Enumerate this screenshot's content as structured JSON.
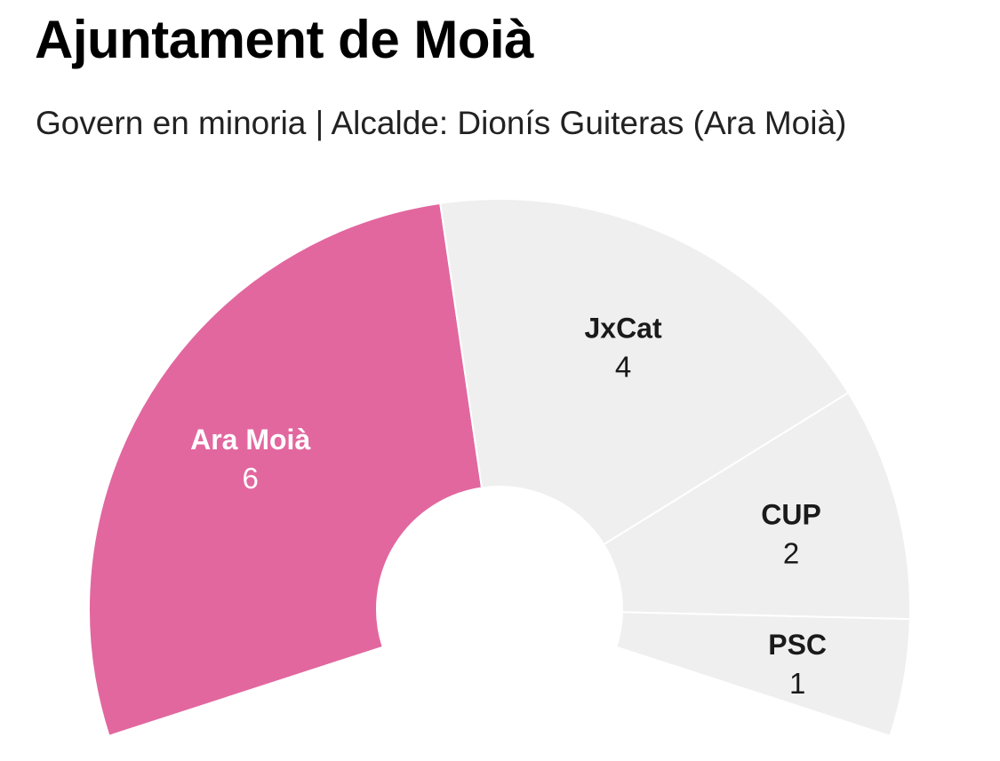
{
  "header": {
    "title": "Ajuntament de Moià",
    "subtitle": "Govern en minoria | Alcalde: Dionís Guiteras (Ara Moià)"
  },
  "colors": {
    "government": "#e2679f",
    "opposition": "#efefef",
    "separator": "#ffffff",
    "label_dark": "#1a1a1a",
    "label_light": "#ffffff"
  },
  "chart_data": {
    "type": "pie",
    "variant": "parliament-semicircle",
    "title": "Ajuntament de Moià",
    "subtitle": "Govern en minoria | Alcalde: Dionís Guiteras (Ara Moià)",
    "categories": [
      "Ara Moià",
      "JxCat",
      "CUP",
      "PSC"
    ],
    "values": [
      6,
      4,
      2,
      1
    ],
    "highlighted": [
      "Ara Moià"
    ],
    "total_seats": 13
  }
}
